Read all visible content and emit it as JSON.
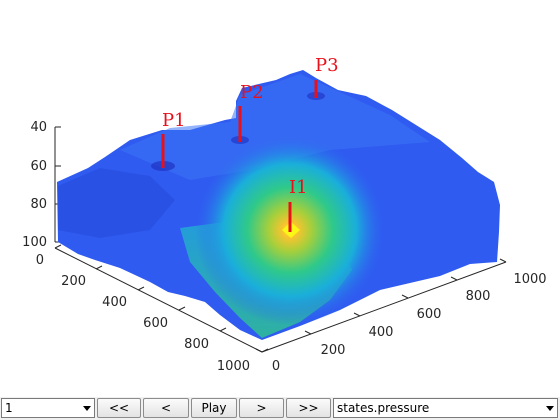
{
  "chart_data": {
    "type": "surface",
    "quantity": "states.pressure",
    "x_ticks": [
      "0",
      "200",
      "400",
      "600",
      "800",
      "1000"
    ],
    "y_ticks": [
      "0",
      "200",
      "400",
      "600",
      "800",
      "1000"
    ],
    "z_ticks": [
      "40",
      "60",
      "80",
      "100"
    ],
    "wells": [
      {
        "name": "P1",
        "color": "#e8101a"
      },
      {
        "name": "P2",
        "color": "#e8101a"
      },
      {
        "name": "I1",
        "color": "#e8101a"
      },
      {
        "name": "P3",
        "color": "#e8101a"
      }
    ],
    "colormap": [
      "#3e26a8",
      "#2b66f6",
      "#1fb4d6",
      "#2dcc8c",
      "#b3c733",
      "#f9d12f",
      "#f9fb15"
    ]
  },
  "controls": {
    "step_value": "1",
    "rewind_label": "<<",
    "prev_label": "<",
    "play_label": "Play",
    "next_label": ">",
    "forward_label": ">>",
    "field_value": "states.pressure"
  }
}
